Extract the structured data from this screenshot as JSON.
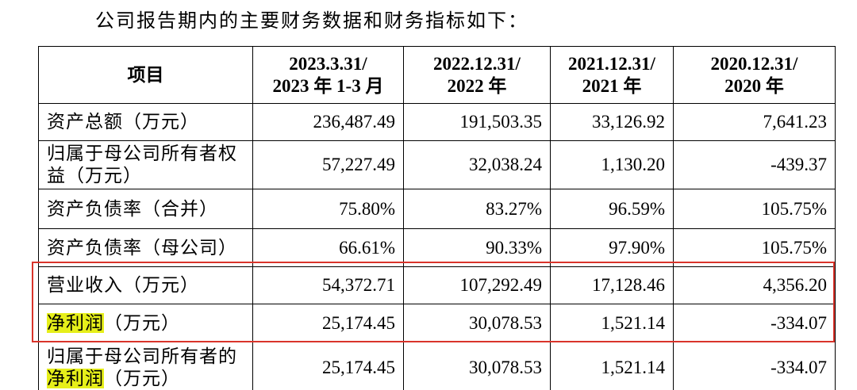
{
  "intro": "公司报告期内的主要财务数据和财务指标如下：",
  "table": {
    "header": [
      [
        "项目"
      ],
      [
        "2023.3.31/",
        "2023 年 1-3 月"
      ],
      [
        "2022.12.31/",
        "2022 年"
      ],
      [
        "2021.12.31/",
        "2021 年"
      ],
      [
        "2020.12.31/",
        "2020 年"
      ]
    ],
    "rows": [
      {
        "label_parts": [
          {
            "text": "资产总额（万元）",
            "highlight": false
          }
        ],
        "values": [
          "236,487.49",
          "191,503.35",
          "33,126.92",
          "7,641.23"
        ]
      },
      {
        "label_parts": [
          {
            "text": "归属于母公司所有者权益（万元）",
            "highlight": false
          }
        ],
        "values": [
          "57,227.49",
          "32,038.24",
          "1,130.20",
          "-439.37"
        ]
      },
      {
        "label_parts": [
          {
            "text": "资产负债率（合并）",
            "highlight": false
          }
        ],
        "values": [
          "75.80%",
          "83.27%",
          "96.59%",
          "105.75%"
        ]
      },
      {
        "label_parts": [
          {
            "text": "资产负债率（母公司）",
            "highlight": false
          }
        ],
        "values": [
          "66.61%",
          "90.33%",
          "97.90%",
          "105.75%"
        ]
      },
      {
        "label_parts": [
          {
            "text": "营业收入（万元）",
            "highlight": false
          }
        ],
        "values": [
          "54,372.71",
          "107,292.49",
          "17,128.46",
          "4,356.20"
        ]
      },
      {
        "label_parts": [
          {
            "text": "净利润",
            "highlight": true
          },
          {
            "text": "（万元）",
            "highlight": false
          }
        ],
        "values": [
          "25,174.45",
          "30,078.53",
          "1,521.14",
          "-334.07"
        ]
      },
      {
        "label_parts": [
          {
            "text": "归属于母公司所有者的",
            "highlight": false
          },
          {
            "text": "净利润",
            "highlight": true
          },
          {
            "text": "（万元）",
            "highlight": false
          }
        ],
        "values": [
          "25,174.45",
          "30,078.53",
          "1,521.14",
          "-334.07"
        ]
      }
    ]
  }
}
